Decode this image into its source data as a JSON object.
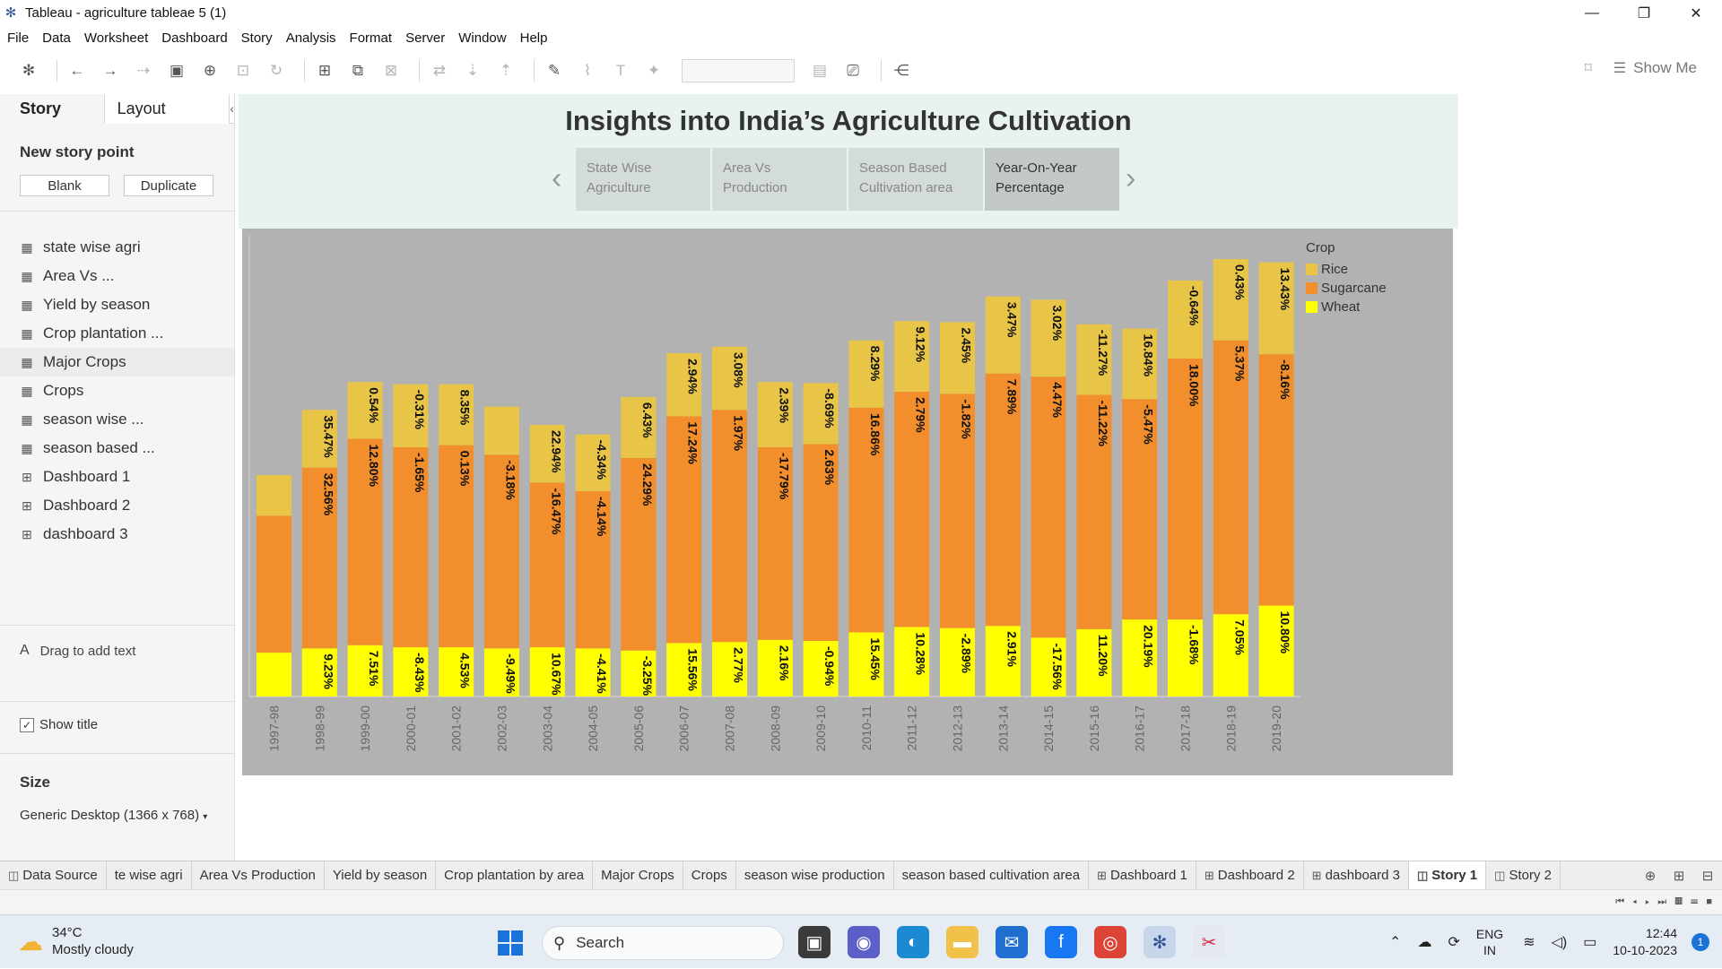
{
  "window": {
    "title": "Tableau - agriculture tableae 5 (1)",
    "controls": [
      "—",
      "❐",
      "✕"
    ]
  },
  "menu": [
    "File",
    "Data",
    "Worksheet",
    "Dashboard",
    "Story",
    "Analysis",
    "Format",
    "Server",
    "Window",
    "Help"
  ],
  "toolbar": {
    "show_me_label": "Show Me"
  },
  "left_pane": {
    "tab_story": "Story",
    "tab_layout": "Layout",
    "new_story_point": "New story point",
    "blank_button": "Blank",
    "duplicate_button": "Duplicate",
    "sheets": [
      {
        "label": "state wise agri",
        "icon": "sheet-icon"
      },
      {
        "label": "Area Vs ...",
        "icon": "sheet-icon"
      },
      {
        "label": "Yield by season",
        "icon": "sheet-icon"
      },
      {
        "label": "Crop plantation ...",
        "icon": "sheet-icon"
      },
      {
        "label": "Major Crops",
        "icon": "sheet-icon"
      },
      {
        "label": "Crops",
        "icon": "sheet-icon"
      },
      {
        "label": "season wise ...",
        "icon": "sheet-icon"
      },
      {
        "label": "season based ...",
        "icon": "sheet-icon"
      },
      {
        "label": "Dashboard 1",
        "icon": "dashboard-icon"
      },
      {
        "label": "Dashboard 2",
        "icon": "dashboard-icon"
      },
      {
        "label": "dashboard 3",
        "icon": "dashboard-icon"
      }
    ],
    "drag_text": "Drag to add text",
    "show_title": "Show title",
    "size_label": "Size",
    "size_value": "Generic Desktop (1366 x 768)"
  },
  "story": {
    "title": "Insights into India’s Agriculture Cultivation",
    "points": [
      {
        "line1": "State  Wise",
        "line2": "Agriculture"
      },
      {
        "line1": "Area Vs",
        "line2": "Production"
      },
      {
        "line1": "Season Based",
        "line2": "Cultivation area"
      },
      {
        "line1": "Year-On-Year",
        "line2": "Percentage"
      }
    ]
  },
  "chart_data": {
    "type": "bar",
    "stacked": true,
    "legend_title": "Crop",
    "legend_placement": "top-right",
    "categories": [
      "1997-98",
      "1998-99",
      "1999-00",
      "2000-01",
      "2001-02",
      "2002-03",
      "2003-04",
      "2004-05",
      "2005-06",
      "2006-07",
      "2007-08",
      "2008-09",
      "2009-10",
      "2010-11",
      "2011-12",
      "2012-13",
      "2013-14",
      "2014-15",
      "2015-16",
      "2016-17",
      "2017-18",
      "2018-19",
      "2019-20"
    ],
    "series": [
      {
        "name": "Wheat",
        "color": "#ffff00",
        "labels": [
          "",
          "9.23%",
          "7.51%",
          "-8.43%",
          "4.53%",
          "-9.49%",
          "10.67%",
          "-4.41%",
          "-3.25%",
          "15.56%",
          "2.77%",
          "2.16%",
          "-0.94%",
          "15.45%",
          "10.28%",
          "-2.89%",
          "2.91%",
          "-17.56%",
          "11.20%",
          "20.19%",
          "-1.68%",
          "7.05%",
          "10.80%"
        ],
        "values": [
          41,
          45,
          48,
          46,
          46,
          45,
          46,
          45,
          43,
          50,
          51,
          53,
          52,
          60,
          65,
          64,
          66,
          55,
          63,
          72,
          72,
          77,
          85
        ]
      },
      {
        "name": "Sugarcane",
        "color": "#f28e2b",
        "labels": [
          "",
          "32.56%",
          "12.80%",
          "-1.65%",
          "0.13%",
          "-3.18%",
          "-16.47%",
          "-4.14%",
          "24.29%",
          "17.24%",
          "1.97%",
          "-17.79%",
          "2.63%",
          "16.86%",
          "2.79%",
          "-1.82%",
          "7.89%",
          "4.47%",
          "-11.22%",
          "-5.47%",
          "18.00%",
          "5.37%",
          "-8.16%"
        ],
        "values": [
          128,
          169,
          193,
          187,
          189,
          181,
          154,
          147,
          180,
          212,
          217,
          180,
          184,
          210,
          220,
          219,
          236,
          244,
          219,
          206,
          244,
          256,
          235
        ]
      },
      {
        "name": "Rice",
        "color": "#e8c547",
        "labels": [
          "",
          "35.47%",
          "0.54%",
          "-0.31%",
          "8.35%",
          "",
          "22.94%",
          "-4.34%",
          "6.43%",
          "2.94%",
          "3.08%",
          "2.39%",
          "-8.69%",
          "8.29%",
          "9.12%",
          "2.45%",
          "3.47%",
          "3.02%",
          "-11.27%",
          "16.84%",
          "-0.64%",
          "0.43%",
          "13.43%"
        ],
        "values": [
          38,
          54,
          53,
          59,
          57,
          45,
          54,
          53,
          57,
          59,
          59,
          61,
          57,
          63,
          66,
          67,
          72,
          72,
          66,
          66,
          73,
          76,
          86
        ]
      }
    ]
  },
  "sheet_tabs": [
    {
      "label": "Data Source",
      "icon": "◫",
      "active": false
    },
    {
      "label": "te wise agri",
      "icon": "",
      "active": false
    },
    {
      "label": "Area Vs Production",
      "icon": "",
      "active": false
    },
    {
      "label": "Yield by season",
      "icon": "",
      "active": false
    },
    {
      "label": "Crop plantation by area",
      "icon": "",
      "active": false
    },
    {
      "label": "Major Crops",
      "icon": "",
      "active": false
    },
    {
      "label": "Crops",
      "icon": "",
      "active": false
    },
    {
      "label": "season wise production",
      "icon": "",
      "active": false
    },
    {
      "label": "season based cultivation area",
      "icon": "",
      "active": false
    },
    {
      "label": "Dashboard 1",
      "icon": "⊞",
      "active": false
    },
    {
      "label": "Dashboard 2",
      "icon": "⊞",
      "active": false
    },
    {
      "label": "dashboard 3",
      "icon": "⊞",
      "active": false
    },
    {
      "label": "Story 1",
      "icon": "◫",
      "active": true
    },
    {
      "label": "Story 2",
      "icon": "◫",
      "active": false
    }
  ],
  "taskbar": {
    "temperature": "34°C",
    "weather": "Mostly cloudy",
    "search_label": "Search",
    "lang_line1": "ENG",
    "lang_line2": "IN",
    "time": "12:44",
    "date": "10-10-2023",
    "notifications": "1"
  }
}
